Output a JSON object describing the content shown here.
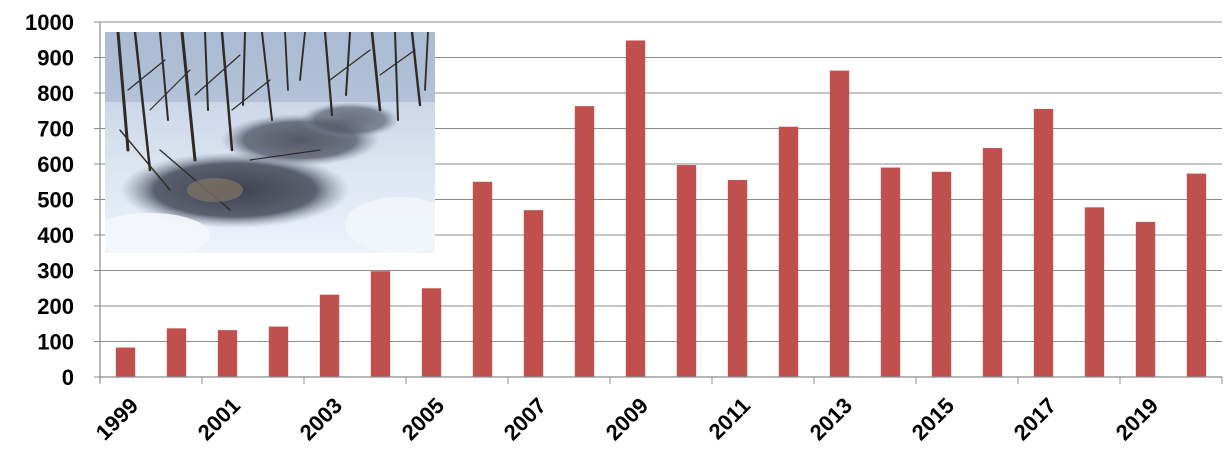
{
  "chart_data": {
    "type": "bar",
    "title": "",
    "xlabel": "",
    "ylabel": "",
    "categories": [
      "1999",
      "2000",
      "2001",
      "2002",
      "2003",
      "2004",
      "2005",
      "2006",
      "2007",
      "2008",
      "2009",
      "2010",
      "2011",
      "2012",
      "2013",
      "2014",
      "2015",
      "2016",
      "2017",
      "2018",
      "2019",
      "2020"
    ],
    "x_tick_labels": [
      "1999",
      "2001",
      "2003",
      "2005",
      "2007",
      "2009",
      "2011",
      "2013",
      "2015",
      "2017",
      "2019"
    ],
    "values": [
      83,
      137,
      132,
      142,
      232,
      298,
      250,
      550,
      470,
      763,
      948,
      597,
      555,
      705,
      863,
      590,
      578,
      645,
      755,
      478,
      437,
      573
    ],
    "ylim": [
      0,
      1000
    ],
    "yticks": [
      0,
      100,
      200,
      300,
      400,
      500,
      600,
      700,
      800,
      900,
      1000
    ],
    "grid": true,
    "bar_color": "#c0504d",
    "inset_image": "snowy-forest-photo"
  }
}
